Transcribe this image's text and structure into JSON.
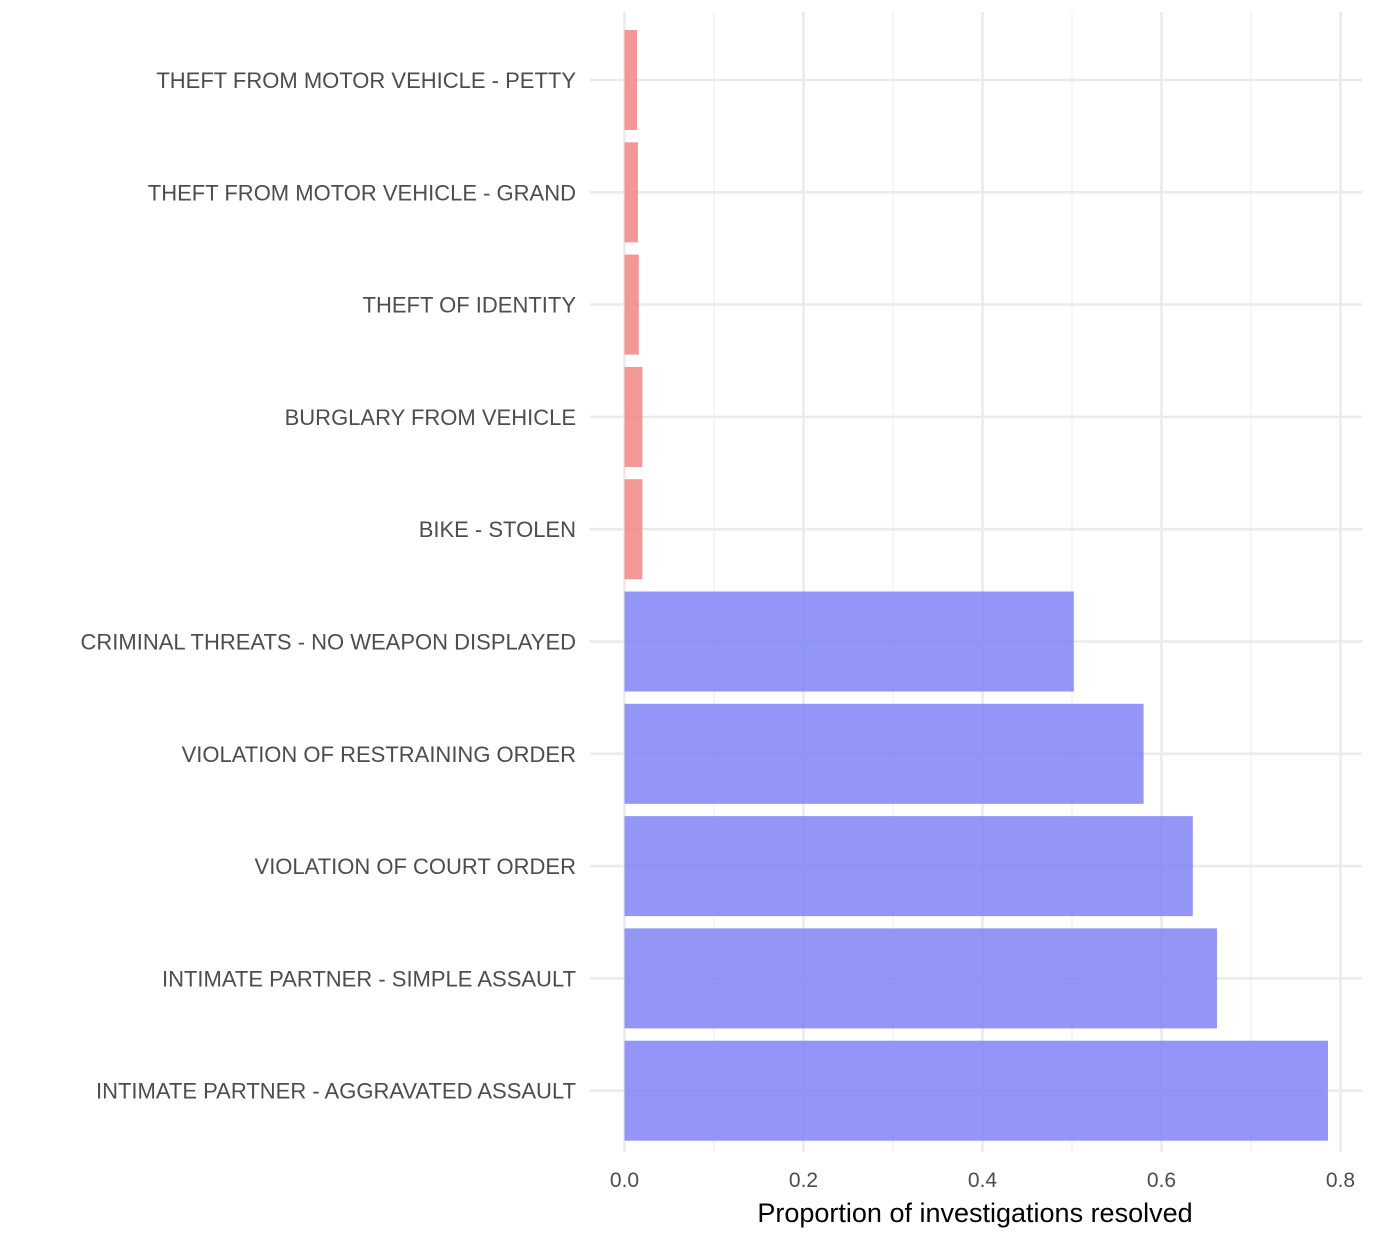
{
  "chart_data": {
    "type": "bar",
    "orientation": "horizontal",
    "xlabel": "Proportion of investigations resolved",
    "ylabel": "",
    "xlim": [
      0,
      0.8
    ],
    "x_ticks": [
      0.0,
      0.2,
      0.4,
      0.6,
      0.8
    ],
    "x_tick_labels": [
      "0.0",
      "0.2",
      "0.4",
      "0.6",
      "0.8"
    ],
    "grid": true,
    "legend": "none",
    "categories": [
      "THEFT FROM MOTOR VEHICLE - PETTY",
      "THEFT FROM MOTOR VEHICLE - GRAND",
      "THEFT OF IDENTITY",
      "BURGLARY FROM VEHICLE",
      "BIKE - STOLEN",
      "CRIMINAL THREATS - NO WEAPON DISPLAYED",
      "VIOLATION OF RESTRAINING ORDER",
      "VIOLATION OF COURT ORDER",
      "INTIMATE PARTNER - SIMPLE ASSAULT",
      "INTIMATE PARTNER - AGGRAVATED ASSAULT"
    ],
    "values": [
      0.014,
      0.015,
      0.016,
      0.02,
      0.02,
      0.502,
      0.58,
      0.635,
      0.662,
      0.786
    ],
    "groups": [
      "low",
      "low",
      "low",
      "low",
      "low",
      "high",
      "high",
      "high",
      "high",
      "high"
    ],
    "colors": {
      "low": "#f08080",
      "high": "#7b7ff5"
    }
  }
}
